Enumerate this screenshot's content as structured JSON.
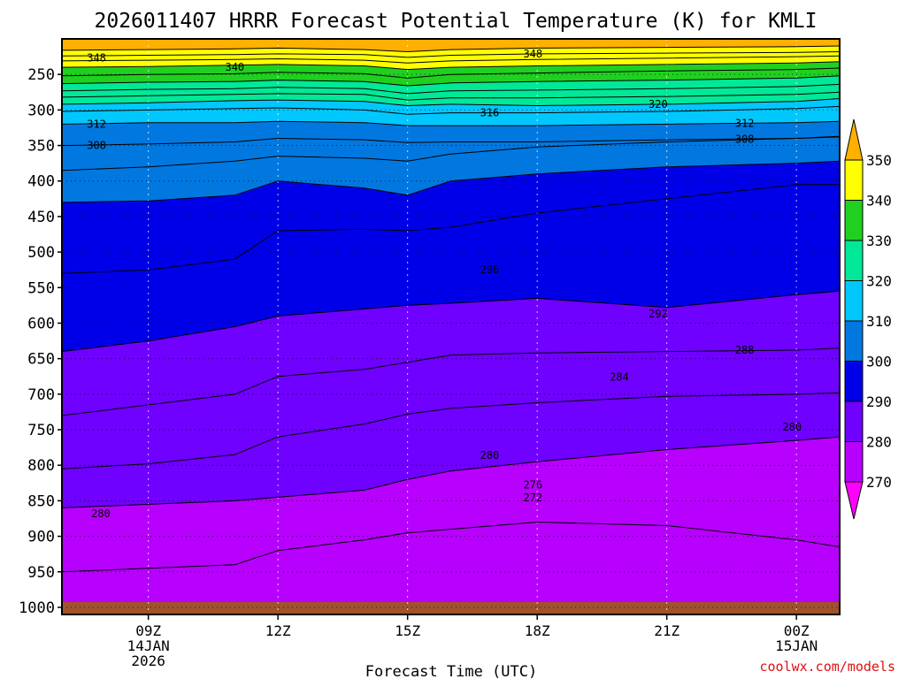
{
  "title": "2026011407 HRRR Forecast Potential Temperature (K) for KMLI",
  "credit": "coolwx.com/models",
  "chart_data": {
    "type": "heatmap",
    "title": "2026011407 HRRR Forecast Potential Temperature (K) for KMLI",
    "xlabel": "Forecast Time (UTC)",
    "ylabel": "",
    "x_range_hours": [
      7,
      25
    ],
    "y_range_hpa": [
      200,
      1010
    ],
    "y_ticks": [
      250,
      300,
      350,
      400,
      450,
      500,
      550,
      600,
      650,
      700,
      750,
      800,
      850,
      900,
      950,
      1000
    ],
    "x_ticks": [
      {
        "hour": 9,
        "lines": [
          "09Z",
          "14JAN",
          "2026"
        ]
      },
      {
        "hour": 12,
        "lines": [
          "12Z"
        ]
      },
      {
        "hour": 15,
        "lines": [
          "15Z"
        ]
      },
      {
        "hour": 18,
        "lines": [
          "18Z"
        ]
      },
      {
        "hour": 21,
        "lines": [
          "21Z"
        ]
      },
      {
        "hour": 24,
        "lines": [
          "00Z",
          "15JAN"
        ]
      }
    ],
    "grid": true,
    "ground_color": "#a0522d",
    "colorbar": {
      "levels": [
        270,
        280,
        290,
        300,
        310,
        320,
        330,
        340,
        350
      ],
      "colors": [
        "#ff00ff",
        "#b800ff",
        "#7000ff",
        "#0000e8",
        "#0078e0",
        "#00c8ff",
        "#00e898",
        "#20d020",
        "#ffff00",
        "#ffb000"
      ],
      "extend": "both"
    },
    "x_hours": [
      7,
      9,
      11,
      12,
      14,
      15,
      16,
      18,
      21,
      24,
      25
    ],
    "isentrope_pressures_hpa": {
      "276": [
        950,
        945,
        940,
        920,
        905,
        895,
        890,
        880,
        885,
        905,
        915
      ],
      "280": [
        860,
        855,
        850,
        845,
        835,
        820,
        808,
        795,
        778,
        765,
        760
      ],
      "284": [
        805,
        798,
        785,
        760,
        742,
        728,
        720,
        712,
        703,
        700,
        698
      ],
      "288": [
        730,
        715,
        700,
        675,
        665,
        655,
        645,
        642,
        640,
        638,
        635
      ],
      "292": [
        640,
        625,
        605,
        590,
        580,
        575,
        572,
        565,
        578,
        560,
        555
      ],
      "296": [
        530,
        525,
        510,
        470,
        468,
        470,
        465,
        445,
        425,
        405,
        405
      ],
      "300": [
        430,
        428,
        420,
        400,
        410,
        420,
        400,
        390,
        380,
        375,
        372
      ],
      "304": [
        385,
        380,
        372,
        365,
        368,
        372,
        362,
        352,
        345,
        340,
        338
      ],
      "308": [
        350,
        348,
        345,
        340,
        342,
        346,
        345,
        345,
        342,
        340,
        337
      ],
      "312": [
        320,
        318,
        318,
        316,
        318,
        322,
        322,
        322,
        320,
        318,
        316
      ],
      "316": [
        302,
        300,
        298,
        297,
        300,
        306,
        304,
        304,
        302,
        298,
        295
      ],
      "320": [
        292,
        290,
        287,
        286,
        288,
        294,
        292,
        294,
        292,
        288,
        284
      ],
      "324": [
        282,
        280,
        278,
        277,
        278,
        286,
        283,
        283,
        281,
        278,
        275
      ],
      "328": [
        273,
        271,
        270,
        268,
        270,
        277,
        273,
        272,
        270,
        267,
        264
      ],
      "332": [
        263,
        261,
        260,
        258,
        260,
        266,
        262,
        260,
        258,
        255,
        252
      ],
      "336": [
        252,
        250,
        249,
        247,
        249,
        255,
        250,
        248,
        245,
        243,
        241
      ],
      "340": [
        240,
        239,
        237,
        236,
        238,
        243,
        240,
        238,
        236,
        234,
        232
      ],
      "344": [
        231,
        230,
        229,
        228,
        230,
        234,
        231,
        229,
        227,
        225,
        224
      ],
      "348": [
        224,
        223,
        222,
        221,
        222,
        226,
        223,
        221,
        220,
        219,
        218
      ],
      "352": [
        216,
        215,
        214,
        213,
        215,
        218,
        215,
        213,
        212,
        211,
        210
      ]
    },
    "contour_labels": [
      {
        "text": "348",
        "hour": 7.8,
        "p": 227
      },
      {
        "text": "340",
        "hour": 11.0,
        "p": 240
      },
      {
        "text": "348",
        "hour": 17.9,
        "p": 221
      },
      {
        "text": "320",
        "hour": 20.8,
        "p": 292
      },
      {
        "text": "316",
        "hour": 16.9,
        "p": 304
      },
      {
        "text": "312",
        "hour": 7.8,
        "p": 320
      },
      {
        "text": "312",
        "hour": 22.8,
        "p": 319
      },
      {
        "text": "308",
        "hour": 7.8,
        "p": 350
      },
      {
        "text": "308",
        "hour": 22.8,
        "p": 341
      },
      {
        "text": "296",
        "hour": 16.9,
        "p": 525
      },
      {
        "text": "292",
        "hour": 20.8,
        "p": 587
      },
      {
        "text": "288",
        "hour": 22.8,
        "p": 638
      },
      {
        "text": "284",
        "hour": 19.9,
        "p": 676
      },
      {
        "text": "280",
        "hour": 23.9,
        "p": 746
      },
      {
        "text": "280",
        "hour": 16.9,
        "p": 786
      },
      {
        "text": "276",
        "hour": 17.9,
        "p": 828
      },
      {
        "text": "272",
        "hour": 17.9,
        "p": 846
      },
      {
        "text": "280",
        "hour": 7.9,
        "p": 868
      }
    ]
  }
}
